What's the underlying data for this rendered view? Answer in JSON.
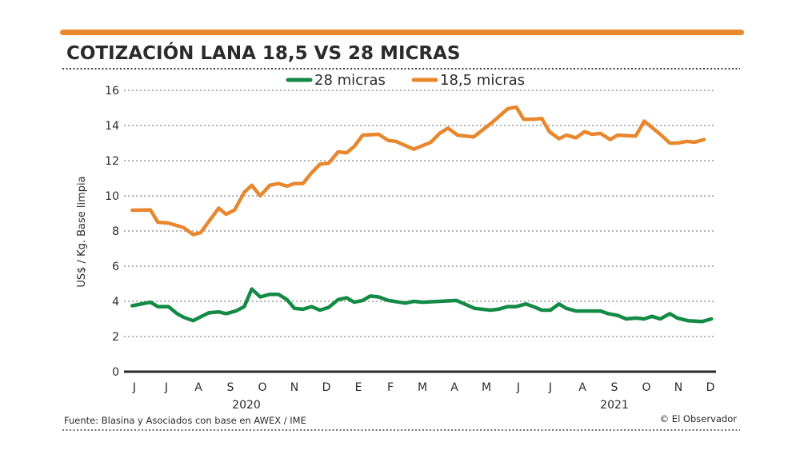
{
  "chart_data": {
    "type": "line",
    "title": "COTIZACIÓN LANA 18,5 VS 28 MICRAS",
    "ylabel": "US$ / Kg. Base limpia",
    "xlabel": "",
    "ylim": [
      0,
      16
    ],
    "yticks": [
      "0",
      "2",
      "4",
      "6",
      "8",
      "10",
      "12",
      "14",
      "16"
    ],
    "xticks": [
      {
        "label": "J",
        "date": "2020-06-01"
      },
      {
        "label": "J",
        "date": "2020-07-01"
      },
      {
        "label": "A",
        "date": "2020-08-01"
      },
      {
        "label": "S",
        "date": "2020-09-01"
      },
      {
        "label": "O",
        "date": "2020-10-01"
      },
      {
        "label": "N",
        "date": "2020-11-01"
      },
      {
        "label": "D",
        "date": "2020-12-01"
      },
      {
        "label": "E",
        "date": "2021-01-01"
      },
      {
        "label": "F",
        "date": "2021-02-01"
      },
      {
        "label": "M",
        "date": "2021-03-01"
      },
      {
        "label": "A",
        "date": "2021-04-01"
      },
      {
        "label": "M",
        "date": "2021-05-01"
      },
      {
        "label": "J",
        "date": "2021-06-01"
      },
      {
        "label": "J",
        "date": "2021-07-01"
      },
      {
        "label": "A",
        "date": "2021-08-01"
      },
      {
        "label": "S",
        "date": "2021-09-01"
      },
      {
        "label": "O",
        "date": "2021-10-01"
      },
      {
        "label": "N",
        "date": "2021-11-01"
      },
      {
        "label": "D",
        "date": "2021-12-01"
      }
    ],
    "years": [
      {
        "label": "2020",
        "date": "2020-09-16"
      },
      {
        "label": "2021",
        "date": "2021-09-01"
      }
    ],
    "grid": true,
    "legend_placement": "top-center",
    "series": [
      {
        "name": "28 micras",
        "color": "#138a45",
        "points": [
          [
            "2020-05-29",
            3.75
          ],
          [
            "2020-06-16",
            3.95
          ],
          [
            "2020-06-23",
            3.7
          ],
          [
            "2020-07-03",
            3.7
          ],
          [
            "2020-07-11",
            3.3
          ],
          [
            "2020-07-17",
            3.1
          ],
          [
            "2020-07-26",
            2.9
          ],
          [
            "2020-08-04",
            3.15
          ],
          [
            "2020-08-11",
            3.35
          ],
          [
            "2020-08-20",
            3.4
          ],
          [
            "2020-08-27",
            3.3
          ],
          [
            "2020-09-06",
            3.45
          ],
          [
            "2020-09-14",
            3.7
          ],
          [
            "2020-09-21",
            4.7
          ],
          [
            "2020-09-29",
            4.25
          ],
          [
            "2020-10-08",
            4.4
          ],
          [
            "2020-10-16",
            4.4
          ],
          [
            "2020-10-24",
            4.1
          ],
          [
            "2020-11-01",
            3.6
          ],
          [
            "2020-11-09",
            3.55
          ],
          [
            "2020-11-17",
            3.7
          ],
          [
            "2020-11-25",
            3.5
          ],
          [
            "2020-12-03",
            3.65
          ],
          [
            "2020-12-12",
            4.1
          ],
          [
            "2020-12-20",
            4.2
          ],
          [
            "2020-12-27",
            3.95
          ],
          [
            "2021-01-05",
            4.05
          ],
          [
            "2021-01-12",
            4.3
          ],
          [
            "2021-01-20",
            4.25
          ],
          [
            "2021-01-29",
            4.05
          ],
          [
            "2021-02-15",
            3.9
          ],
          [
            "2021-02-23",
            4.0
          ],
          [
            "2021-03-01",
            3.95
          ],
          [
            "2021-03-17",
            4.0
          ],
          [
            "2021-04-03",
            4.05
          ],
          [
            "2021-04-20",
            3.6
          ],
          [
            "2021-05-05",
            3.5
          ],
          [
            "2021-05-12",
            3.55
          ],
          [
            "2021-05-21",
            3.7
          ],
          [
            "2021-05-29",
            3.7
          ],
          [
            "2021-06-08",
            3.85
          ],
          [
            "2021-06-15",
            3.7
          ],
          [
            "2021-06-23",
            3.5
          ],
          [
            "2021-07-01",
            3.5
          ],
          [
            "2021-07-09",
            3.85
          ],
          [
            "2021-07-16",
            3.6
          ],
          [
            "2021-07-25",
            3.45
          ],
          [
            "2021-08-18",
            3.45
          ],
          [
            "2021-08-25",
            3.3
          ],
          [
            "2021-09-04",
            3.2
          ],
          [
            "2021-09-12",
            3.0
          ],
          [
            "2021-09-21",
            3.05
          ],
          [
            "2021-09-29",
            3.0
          ],
          [
            "2021-10-06",
            3.15
          ],
          [
            "2021-10-14",
            3.0
          ],
          [
            "2021-10-23",
            3.3
          ],
          [
            "2021-10-30",
            3.05
          ],
          [
            "2021-11-10",
            2.9
          ],
          [
            "2021-11-23",
            2.85
          ],
          [
            "2021-12-02",
            3.0
          ]
        ]
      },
      {
        "name": "18,5 micras",
        "color": "#e8872e",
        "points": [
          [
            "2020-05-29",
            9.18
          ],
          [
            "2020-06-16",
            9.2
          ],
          [
            "2020-06-23",
            8.5
          ],
          [
            "2020-07-03",
            8.45
          ],
          [
            "2020-07-17",
            8.2
          ],
          [
            "2020-07-26",
            7.8
          ],
          [
            "2020-08-03",
            7.9
          ],
          [
            "2020-08-20",
            9.3
          ],
          [
            "2020-08-27",
            8.95
          ],
          [
            "2020-09-05",
            9.2
          ],
          [
            "2020-09-14",
            10.2
          ],
          [
            "2020-09-21",
            10.6
          ],
          [
            "2020-09-29",
            10.0
          ],
          [
            "2020-10-08",
            10.6
          ],
          [
            "2020-10-16",
            10.7
          ],
          [
            "2020-10-24",
            10.55
          ],
          [
            "2020-11-01",
            10.7
          ],
          [
            "2020-11-09",
            10.7
          ],
          [
            "2020-11-17",
            11.3
          ],
          [
            "2020-11-25",
            11.8
          ],
          [
            "2020-12-03",
            11.85
          ],
          [
            "2020-12-12",
            12.5
          ],
          [
            "2020-12-20",
            12.45
          ],
          [
            "2020-12-27",
            12.8
          ],
          [
            "2021-01-05",
            13.45
          ],
          [
            "2021-01-20",
            13.5
          ],
          [
            "2021-01-29",
            13.15
          ],
          [
            "2021-02-06",
            13.1
          ],
          [
            "2021-02-23",
            12.65
          ],
          [
            "2021-03-01",
            12.85
          ],
          [
            "2021-03-09",
            13.05
          ],
          [
            "2021-03-17",
            13.55
          ],
          [
            "2021-03-25",
            13.85
          ],
          [
            "2021-04-04",
            13.45
          ],
          [
            "2021-04-19",
            13.35
          ],
          [
            "2021-05-05",
            14.1
          ],
          [
            "2021-05-21",
            14.95
          ],
          [
            "2021-05-29",
            15.05
          ],
          [
            "2021-06-06",
            14.35
          ],
          [
            "2021-06-15",
            14.35
          ],
          [
            "2021-06-23",
            14.4
          ],
          [
            "2021-06-30",
            13.65
          ],
          [
            "2021-07-09",
            13.25
          ],
          [
            "2021-07-16",
            13.45
          ],
          [
            "2021-07-25",
            13.3
          ],
          [
            "2021-08-03",
            13.65
          ],
          [
            "2021-08-10",
            13.5
          ],
          [
            "2021-08-18",
            13.55
          ],
          [
            "2021-08-27",
            13.2
          ],
          [
            "2021-09-04",
            13.45
          ],
          [
            "2021-09-21",
            13.4
          ],
          [
            "2021-09-29",
            14.25
          ],
          [
            "2021-10-06",
            13.9
          ],
          [
            "2021-10-14",
            13.5
          ],
          [
            "2021-10-23",
            13.0
          ],
          [
            "2021-10-30",
            13.0
          ],
          [
            "2021-11-09",
            13.1
          ],
          [
            "2021-11-16",
            13.05
          ],
          [
            "2021-11-25",
            13.2
          ]
        ]
      }
    ]
  },
  "colors": {
    "accent_bar": "#e8872e",
    "text": "#2b2b2b",
    "grid": "#9a9a9a"
  },
  "footer": {
    "source": "Fuente: Blasina y Asociados con base en AWEX / IME",
    "credit": "© El Observador"
  }
}
